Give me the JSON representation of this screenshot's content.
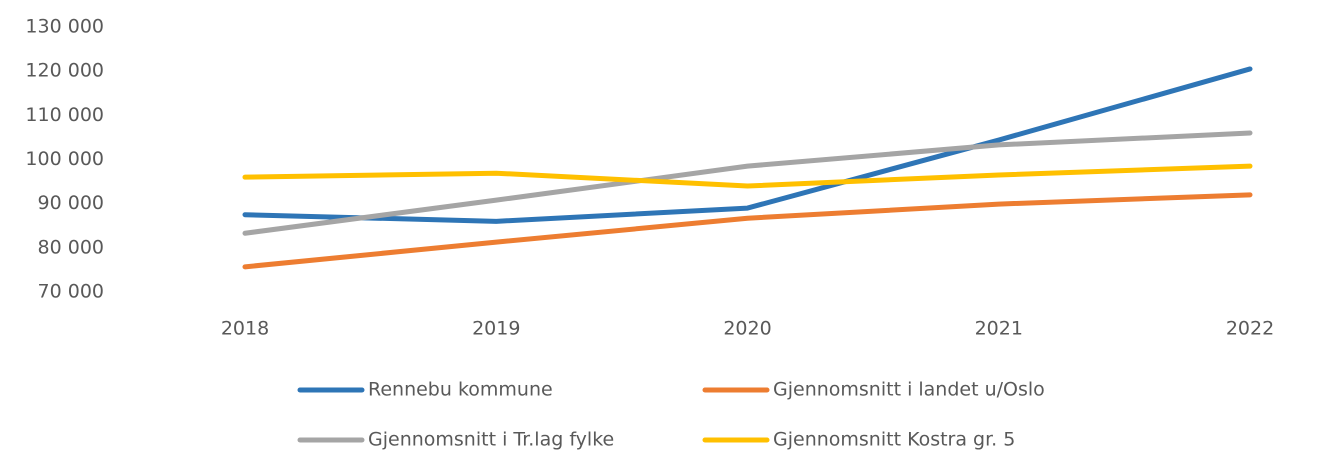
{
  "chart_data": {
    "type": "line",
    "categories": [
      "2018",
      "2019",
      "2020",
      "2021",
      "2022"
    ],
    "series": [
      {
        "name": "Rennebu kommune",
        "color": "#2e75b6",
        "values": [
          87500,
          86000,
          89000,
          104400,
          120500
        ]
      },
      {
        "name": "Gjennomsnitt i landet u/Oslo",
        "color": "#ed7d31",
        "values": [
          75700,
          81300,
          86700,
          89900,
          92000
        ]
      },
      {
        "name": "Gjennomsnitt i Tr.lag fylke",
        "color": "#a5a5a5",
        "values": [
          83300,
          90800,
          98500,
          103300,
          106000
        ]
      },
      {
        "name": "Gjennomsnitt Kostra gr. 5",
        "color": "#ffc000",
        "values": [
          96000,
          96900,
          94000,
          96500,
          98500
        ]
      }
    ],
    "ylim": [
      70000,
      130000
    ],
    "yticks": [
      {
        "value": 70000,
        "label": "70 000"
      },
      {
        "value": 80000,
        "label": "80 000"
      },
      {
        "value": 90000,
        "label": "90 000"
      },
      {
        "value": 100000,
        "label": "100 000"
      },
      {
        "value": 110000,
        "label": "110 000"
      },
      {
        "value": 120000,
        "label": "120 000"
      },
      {
        "value": 130000,
        "label": "130 000"
      }
    ],
    "grid": false
  }
}
